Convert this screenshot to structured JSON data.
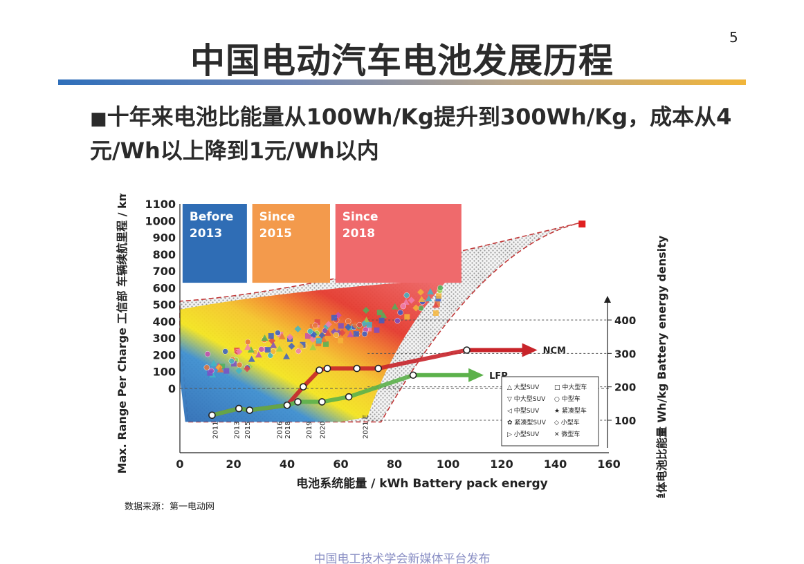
{
  "page": {
    "number": "5",
    "title": "中国电动汽车电池发展历程",
    "bullet_mark": "■",
    "bullet_text": "十年来电池比能量从100Wh/Kg提升到300Wh/Kg，成本从4元/Wh以上降到1元/Wh以内",
    "source": "数据来源：第一电动网",
    "footer": "中国电工技术学会新媒体平台发布"
  },
  "chart_data": {
    "type": "scatter",
    "xlabel": "电池系统能量 / kWh   Battery pack energy",
    "ylabel": "Max. Range Per Charge 工信部 车辆续航里程 / km",
    "y2label": "单体电池比能量 Wh/kg   Battery energy density",
    "x_ticks": [
      0,
      20,
      40,
      60,
      80,
      100,
      120,
      140,
      160
    ],
    "y_ticks": [
      0,
      100,
      200,
      300,
      400,
      500,
      600,
      700,
      800,
      900,
      1000,
      1100
    ],
    "y2_ticks": [
      100,
      200,
      300,
      400
    ],
    "xlim": [
      0,
      160
    ],
    "ylim": [
      0,
      1100
    ],
    "periods": [
      {
        "label": "Before 2013",
        "color": "#2f6db5"
      },
      {
        "label": "Since 2015",
        "color": "#f39a4c"
      },
      {
        "label": "Since 2018",
        "color": "#ef6a6c"
      }
    ],
    "year_labels": [
      "2011",
      "2013",
      "2015",
      "2016",
      "2018",
      "2019",
      "2020",
      "2021 E"
    ],
    "series": [
      {
        "name": "NCM",
        "color": "#c8242a",
        "points": [
          [
            12,
            0
          ],
          [
            22,
            0
          ],
          [
            26,
            0
          ],
          [
            40,
            0
          ],
          [
            46,
            0
          ],
          [
            52,
            0
          ],
          [
            55,
            0
          ],
          [
            66,
            0
          ],
          [
            74,
            0
          ],
          [
            107,
            0
          ]
        ],
        "energy": [
          115,
          135,
          130,
          145,
          200,
          250,
          255,
          255,
          255,
          310
        ]
      },
      {
        "name": "LFP",
        "color": "#5cb14b",
        "points": [
          [
            12,
            0
          ],
          [
            22,
            0
          ],
          [
            26,
            0
          ],
          [
            40,
            0
          ],
          [
            44,
            0
          ],
          [
            53,
            0
          ],
          [
            63,
            0
          ],
          [
            87,
            0
          ]
        ],
        "energy": [
          115,
          135,
          130,
          145,
          155,
          155,
          170,
          235
        ]
      }
    ],
    "legend": [
      "大型SUV",
      "中大型车",
      "中大型SUV",
      "中型车",
      "中型SUV",
      "紧凑型车",
      "紧凑型SUV",
      "小型车",
      "小型SUV",
      "微型车"
    ],
    "max_point": {
      "x": 150,
      "range": 980
    }
  },
  "colors": {
    "accent_blue": "#2f6fba",
    "accent_gold": "#f1b53a",
    "ncm": "#c8242a",
    "lfp": "#5cb14b"
  }
}
